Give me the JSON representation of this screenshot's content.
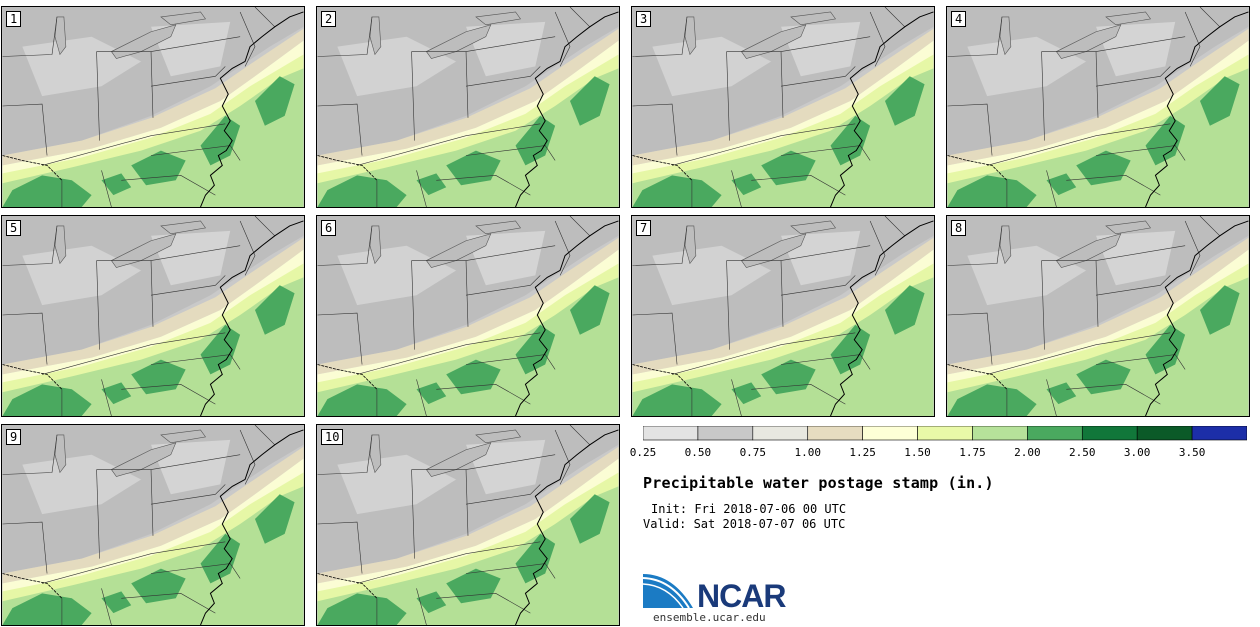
{
  "panels": [
    {
      "label": "1"
    },
    {
      "label": "2"
    },
    {
      "label": "3"
    },
    {
      "label": "4"
    },
    {
      "label": "5"
    },
    {
      "label": "6"
    },
    {
      "label": "7"
    },
    {
      "label": "8"
    },
    {
      "label": "9"
    },
    {
      "label": "10"
    }
  ],
  "legend": {
    "ticks": [
      "0.25",
      "0.50",
      "0.75",
      "1.00",
      "1.25",
      "1.50",
      "1.75",
      "2.00",
      "2.50",
      "3.00",
      "3.50"
    ],
    "colors": [
      "#e3e3e3",
      "#c8c8c8",
      "#e8e8e0",
      "#e6dcc0",
      "#fdffd6",
      "#e9f9a8",
      "#b6e29a",
      "#4aa95f",
      "#11773a",
      "#0b5a28",
      "#1c2ea8"
    ]
  },
  "title": "Precipitable water postage stamp (in.)",
  "init": "Init: Fri 2018-07-06 00 UTC",
  "valid": "Valid: Sat 2018-07-07 06 UTC",
  "logo": {
    "text": "NCAR",
    "url": "ensemble.ucar.edu"
  }
}
